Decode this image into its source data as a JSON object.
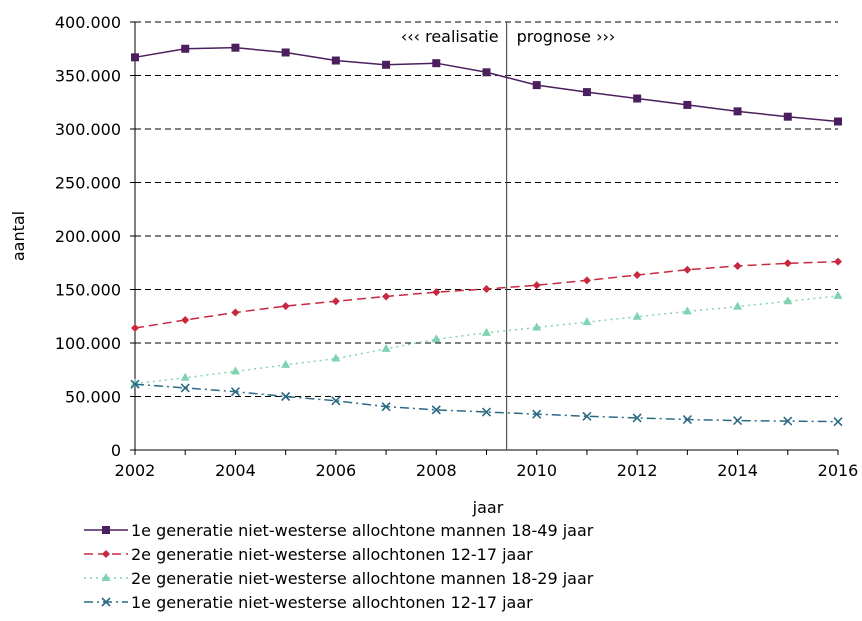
{
  "chart_data": {
    "type": "line",
    "xlabel": "jaar",
    "ylabel": "aantal",
    "xlim": [
      2002,
      2016
    ],
    "ylim": [
      0,
      400000
    ],
    "x_ticks": [
      2002,
      2004,
      2006,
      2008,
      2010,
      2012,
      2014,
      2016
    ],
    "x_tick_labels": [
      "2002",
      "2004",
      "2006",
      "2008",
      "2010",
      "2012",
      "2014",
      "2016"
    ],
    "y_ticks": [
      0,
      50000,
      100000,
      150000,
      200000,
      250000,
      300000,
      350000,
      400000
    ],
    "y_tick_labels": [
      "0",
      "50.000",
      "100.000",
      "150.000",
      "200.000",
      "250.000",
      "300.000",
      "350.000",
      "400.000"
    ],
    "grid": "horizontal dashed",
    "legend_position": "bottom",
    "divider_x": 2009.4,
    "annotations": [
      "‹‹‹ realisatie",
      "prognose ›››"
    ],
    "x": [
      2002,
      2003,
      2004,
      2005,
      2006,
      2007,
      2008,
      2009,
      2010,
      2011,
      2012,
      2013,
      2014,
      2015,
      2016
    ],
    "series": [
      {
        "name": "1e generatie niet-westerse allochtone mannen 18-49 jaar",
        "color": "#4b1f5e",
        "dash": "",
        "marker": "square",
        "values": [
          367000,
          375000,
          376000,
          371500,
          364000,
          360000,
          361500,
          353000,
          341000,
          334500,
          328500,
          322500,
          316500,
          311500,
          307000
        ]
      },
      {
        "name": "2e generatie niet-westerse allochtonen 12-17 jaar",
        "color": "#c8283f",
        "dash": "9,5",
        "marker": "diamond",
        "values": [
          114000,
          121500,
          128500,
          134500,
          139000,
          143500,
          147500,
          150500,
          154000,
          158500,
          163500,
          168500,
          172000,
          174500,
          176000
        ]
      },
      {
        "name": "2e generatie niet-westerse allochtone mannen 18-29 jaar",
        "color": "#7fd3b0",
        "dash": "2,4",
        "marker": "triangle",
        "values": [
          62000,
          67500,
          73500,
          79500,
          85500,
          94500,
          103500,
          109500,
          114500,
          119500,
          124500,
          129500,
          134000,
          139000,
          144000
        ]
      },
      {
        "name": "1e generatie niet-westerse allochtonen 12-17 jaar",
        "color": "#2c6a84",
        "dash": "9,4,2,4",
        "marker": "x",
        "values": [
          61500,
          58000,
          54500,
          50000,
          46000,
          40500,
          37500,
          35500,
          33500,
          31500,
          30000,
          28500,
          27500,
          27000,
          26500
        ]
      }
    ]
  }
}
